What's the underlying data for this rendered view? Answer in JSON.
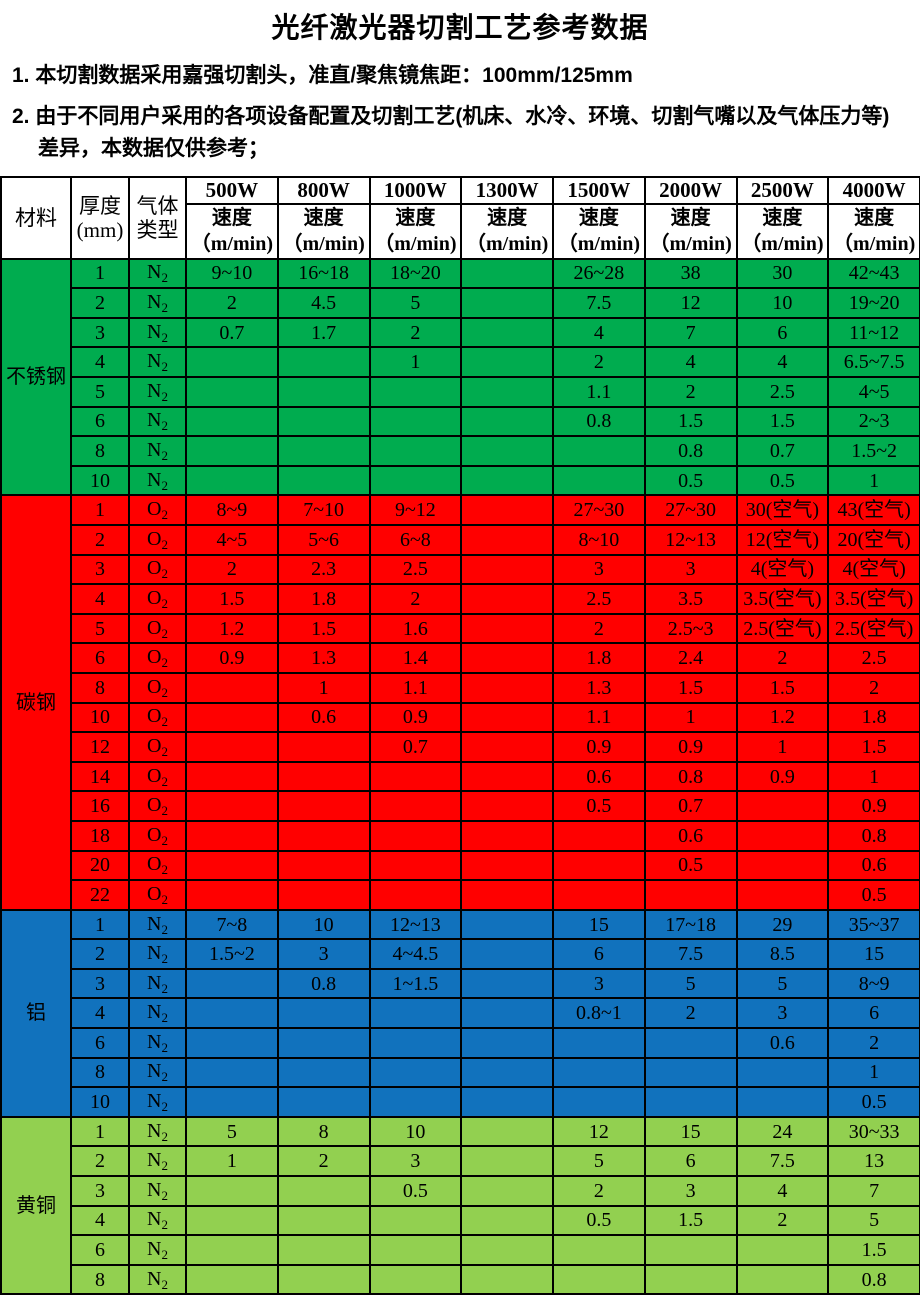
{
  "page": {
    "title": "光纤激光器切割工艺参考数据",
    "notes": [
      "1. 本切割数据采用嘉强切割头，准直/聚焦镜焦距：100mm/125mm",
      "2. 由于不同用户采用的各项设备配置及切割工艺(机床、水冷、环境、切割气嘴以及气体压力等)差异，本数据仅供参考；"
    ]
  },
  "table": {
    "header": {
      "material": "材料",
      "thickness": "厚度\n(mm)",
      "gas": "气体\n类型",
      "powers": [
        "500W",
        "800W",
        "1000W",
        "1300W",
        "1500W",
        "2000W",
        "2500W",
        "4000W"
      ],
      "speed_label": "速度\n（m/min)"
    },
    "sections": [
      {
        "material": "不锈钢",
        "color": "#00AC4F",
        "rows": [
          {
            "thickness": "1",
            "gas": "N2",
            "speeds": [
              "9~10",
              "16~18",
              "18~20",
              "",
              "26~28",
              "38",
              "30",
              "42~43"
            ]
          },
          {
            "thickness": "2",
            "gas": "N2",
            "speeds": [
              "2",
              "4.5",
              "5",
              "",
              "7.5",
              "12",
              "10",
              "19~20"
            ]
          },
          {
            "thickness": "3",
            "gas": "N2",
            "speeds": [
              "0.7",
              "1.7",
              "2",
              "",
              "4",
              "7",
              "6",
              "11~12"
            ]
          },
          {
            "thickness": "4",
            "gas": "N2",
            "speeds": [
              "",
              "",
              "1",
              "",
              "2",
              "4",
              "4",
              "6.5~7.5"
            ]
          },
          {
            "thickness": "5",
            "gas": "N2",
            "speeds": [
              "",
              "",
              "",
              "",
              "1.1",
              "2",
              "2.5",
              "4~5"
            ]
          },
          {
            "thickness": "6",
            "gas": "N2",
            "speeds": [
              "",
              "",
              "",
              "",
              "0.8",
              "1.5",
              "1.5",
              "2~3"
            ]
          },
          {
            "thickness": "8",
            "gas": "N2",
            "speeds": [
              "",
              "",
              "",
              "",
              "",
              "0.8",
              "0.7",
              "1.5~2"
            ]
          },
          {
            "thickness": "10",
            "gas": "N2",
            "speeds": [
              "",
              "",
              "",
              "",
              "",
              "0.5",
              "0.5",
              "1"
            ]
          }
        ]
      },
      {
        "material": "碳钢",
        "color": "#FF0000",
        "rows": [
          {
            "thickness": "1",
            "gas": "O2",
            "speeds": [
              "8~9",
              "7~10",
              "9~12",
              "",
              "27~30",
              "27~30",
              "30(空气)",
              "43(空气)"
            ]
          },
          {
            "thickness": "2",
            "gas": "O2",
            "speeds": [
              "4~5",
              "5~6",
              "6~8",
              "",
              "8~10",
              "12~13",
              "12(空气)",
              "20(空气)"
            ]
          },
          {
            "thickness": "3",
            "gas": "O2",
            "speeds": [
              "2",
              "2.3",
              "2.5",
              "",
              "3",
              "3",
              "4(空气)",
              "4(空气)"
            ]
          },
          {
            "thickness": "4",
            "gas": "O2",
            "speeds": [
              "1.5",
              "1.8",
              "2",
              "",
              "2.5",
              "3.5",
              "3.5(空气)",
              "3.5(空气)"
            ]
          },
          {
            "thickness": "5",
            "gas": "O2",
            "speeds": [
              "1.2",
              "1.5",
              "1.6",
              "",
              "2",
              "2.5~3",
              "2.5(空气)",
              "2.5(空气)"
            ]
          },
          {
            "thickness": "6",
            "gas": "O2",
            "speeds": [
              "0.9",
              "1.3",
              "1.4",
              "",
              "1.8",
              "2.4",
              "2",
              "2.5"
            ]
          },
          {
            "thickness": "8",
            "gas": "O2",
            "speeds": [
              "",
              "1",
              "1.1",
              "",
              "1.3",
              "1.5",
              "1.5",
              "2"
            ]
          },
          {
            "thickness": "10",
            "gas": "O2",
            "speeds": [
              "",
              "0.6",
              "0.9",
              "",
              "1.1",
              "1",
              "1.2",
              "1.8"
            ]
          },
          {
            "thickness": "12",
            "gas": "O2",
            "speeds": [
              "",
              "",
              "0.7",
              "",
              "0.9",
              "0.9",
              "1",
              "1.5"
            ]
          },
          {
            "thickness": "14",
            "gas": "O2",
            "speeds": [
              "",
              "",
              "",
              "",
              "0.6",
              "0.8",
              "0.9",
              "1"
            ]
          },
          {
            "thickness": "16",
            "gas": "O2",
            "speeds": [
              "",
              "",
              "",
              "",
              "0.5",
              "0.7",
              "",
              "0.9"
            ]
          },
          {
            "thickness": "18",
            "gas": "O2",
            "speeds": [
              "",
              "",
              "",
              "",
              "",
              "0.6",
              "",
              "0.8"
            ]
          },
          {
            "thickness": "20",
            "gas": "O2",
            "speeds": [
              "",
              "",
              "",
              "",
              "",
              "0.5",
              "",
              "0.6"
            ]
          },
          {
            "thickness": "22",
            "gas": "O2",
            "speeds": [
              "",
              "",
              "",
              "",
              "",
              "",
              "",
              "0.5"
            ]
          }
        ]
      },
      {
        "material": "铝",
        "color": "#1172BD",
        "rows": [
          {
            "thickness": "1",
            "gas": "N2",
            "speeds": [
              "7~8",
              "10",
              "12~13",
              "",
              "15",
              "17~18",
              "29",
              "35~37"
            ]
          },
          {
            "thickness": "2",
            "gas": "N2",
            "speeds": [
              "1.5~2",
              "3",
              "4~4.5",
              "",
              "6",
              "7.5",
              "8.5",
              "15"
            ]
          },
          {
            "thickness": "3",
            "gas": "N2",
            "speeds": [
              "",
              "0.8",
              "1~1.5",
              "",
              "3",
              "5",
              "5",
              "8~9"
            ]
          },
          {
            "thickness": "4",
            "gas": "N2",
            "speeds": [
              "",
              "",
              "",
              "",
              "0.8~1",
              "2",
              "3",
              "6"
            ]
          },
          {
            "thickness": "6",
            "gas": "N2",
            "speeds": [
              "",
              "",
              "",
              "",
              "",
              "",
              "0.6",
              "2"
            ]
          },
          {
            "thickness": "8",
            "gas": "N2",
            "speeds": [
              "",
              "",
              "",
              "",
              "",
              "",
              "",
              "1"
            ]
          },
          {
            "thickness": "10",
            "gas": "N2",
            "speeds": [
              "",
              "",
              "",
              "",
              "",
              "",
              "",
              "0.5"
            ]
          }
        ]
      },
      {
        "material": "黄铜",
        "color": "#92D050",
        "rows": [
          {
            "thickness": "1",
            "gas": "N2",
            "speeds": [
              "5",
              "8",
              "10",
              "",
              "12",
              "15",
              "24",
              "30~33"
            ]
          },
          {
            "thickness": "2",
            "gas": "N2",
            "speeds": [
              "1",
              "2",
              "3",
              "",
              "5",
              "6",
              "7.5",
              "13"
            ]
          },
          {
            "thickness": "3",
            "gas": "N2",
            "speeds": [
              "",
              "",
              "0.5",
              "",
              "2",
              "3",
              "4",
              "7"
            ]
          },
          {
            "thickness": "4",
            "gas": "N2",
            "speeds": [
              "",
              "",
              "",
              "",
              "0.5",
              "1.5",
              "2",
              "5"
            ]
          },
          {
            "thickness": "6",
            "gas": "N2",
            "speeds": [
              "",
              "",
              "",
              "",
              "",
              "",
              "",
              "1.5"
            ]
          },
          {
            "thickness": "8",
            "gas": "N2",
            "speeds": [
              "",
              "",
              "",
              "",
              "",
              "",
              "",
              "0.8"
            ]
          }
        ]
      }
    ]
  }
}
